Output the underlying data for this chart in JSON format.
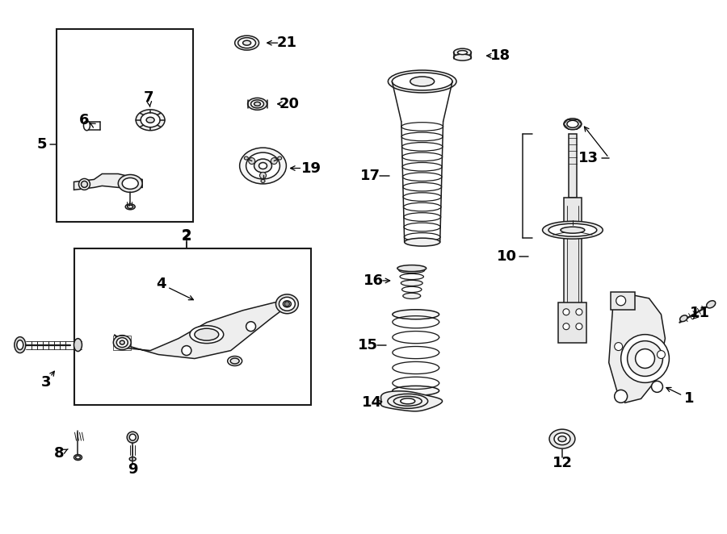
{
  "bg_color": "#ffffff",
  "line_color": "#1a1a1a",
  "fig_width": 9.0,
  "fig_height": 6.62,
  "dpi": 100,
  "label_fontsize": 13
}
